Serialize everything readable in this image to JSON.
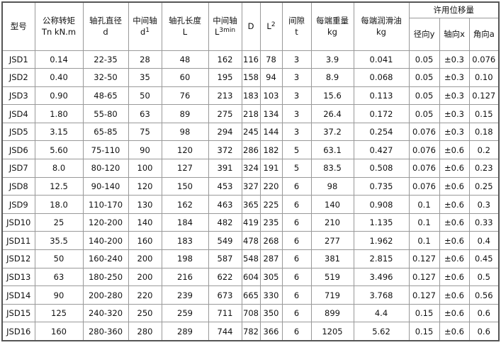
{
  "header": {
    "model": "型号",
    "torque": [
      "公称转矩",
      "Tn kN.m"
    ],
    "bore": [
      "轴孔直径",
      "d"
    ],
    "mid_shaft_d": [
      "中间轴",
      "d",
      "1"
    ],
    "bore_len": [
      "轴孔长度",
      "L"
    ],
    "mid_shaft_l": [
      "中间轴",
      "L",
      "3min"
    ],
    "D": "D",
    "L2": [
      "L",
      "2"
    ],
    "gap": [
      "间隙",
      "t"
    ],
    "weight": [
      "每端重量",
      "kg"
    ],
    "grease": [
      "每端润滑油",
      "kg"
    ],
    "displacement": "许用位移量",
    "radial": "径向y",
    "axial": "轴向x",
    "angular": "角向a"
  },
  "rows": [
    [
      "JSD1",
      "0.14",
      "22-35",
      "28",
      "48",
      "162",
      "116",
      "78",
      "3",
      "3.9",
      "0.041",
      "0.05",
      "±0.3",
      "0.076"
    ],
    [
      "JSD2",
      "0.40",
      "32-50",
      "35",
      "60",
      "195",
      "158",
      "94",
      "3",
      "8.9",
      "0.068",
      "0.05",
      "±0.3",
      "0.10"
    ],
    [
      "JSD3",
      "0.90",
      "48-65",
      "50",
      "76",
      "213",
      "183",
      "103",
      "3",
      "15.6",
      "0.113",
      "0.05",
      "±0.3",
      "0.127"
    ],
    [
      "JSD4",
      "1.80",
      "55-80",
      "63",
      "89",
      "275",
      "218",
      "134",
      "3",
      "26.4",
      "0.172",
      "0.05",
      "±0.3",
      "0.15"
    ],
    [
      "JSD5",
      "3.15",
      "65-85",
      "75",
      "98",
      "294",
      "245",
      "144",
      "3",
      "37.2",
      "0.254",
      "0.076",
      "±0.3",
      "0.18"
    ],
    [
      "JSD6",
      "5.60",
      "75-110",
      "90",
      "120",
      "372",
      "286",
      "182",
      "5",
      "63.1",
      "0.427",
      "0.076",
      "±0.6",
      "0.2"
    ],
    [
      "JSD7",
      "8.0",
      "80-120",
      "100",
      "127",
      "391",
      "324",
      "191",
      "5",
      "83.5",
      "0.508",
      "0.076",
      "±0.6",
      "0.23"
    ],
    [
      "JSD8",
      "12.5",
      "90-140",
      "120",
      "150",
      "453",
      "327",
      "220",
      "6",
      "98",
      "0.735",
      "0.076",
      "±0.6",
      "0.25"
    ],
    [
      "JSD9",
      "18.0",
      "110-170",
      "130",
      "162",
      "463",
      "365",
      "225",
      "6",
      "140",
      "0.908",
      "0.1",
      "±0.6",
      "0.3"
    ],
    [
      "JSD10",
      "25",
      "120-200",
      "140",
      "184",
      "482",
      "419",
      "235",
      "6",
      "210",
      "1.135",
      "0.1",
      "±0.6",
      "0.33"
    ],
    [
      "JSD11",
      "35.5",
      "140-200",
      "160",
      "183",
      "549",
      "478",
      "268",
      "6",
      "277",
      "1.962",
      "0.1",
      "±0.6",
      "0.4"
    ],
    [
      "JSD12",
      "50",
      "160-240",
      "200",
      "198",
      "587",
      "548",
      "287",
      "6",
      "381",
      "2.815",
      "0.127",
      "±0.6",
      "0.45"
    ],
    [
      "JSD13",
      "63",
      "180-250",
      "200",
      "216",
      "622",
      "604",
      "305",
      "6",
      "519",
      "3.496",
      "0.127",
      "±0.6",
      "0.5"
    ],
    [
      "JSD14",
      "90",
      "200-280",
      "220",
      "239",
      "673",
      "665",
      "330",
      "6",
      "719",
      "3.768",
      "0.127",
      "±0.6",
      "0.56"
    ],
    [
      "JSD15",
      "125",
      "240-320",
      "250",
      "259",
      "711",
      "708",
      "350",
      "6",
      "899",
      "4.4",
      "0.15",
      "±0.6",
      "0.6"
    ],
    [
      "JSD16",
      "160",
      "280-360",
      "280",
      "289",
      "744",
      "782",
      "366",
      "6",
      "1205",
      "5.62",
      "0.15",
      "±0.6",
      "0.6"
    ]
  ]
}
